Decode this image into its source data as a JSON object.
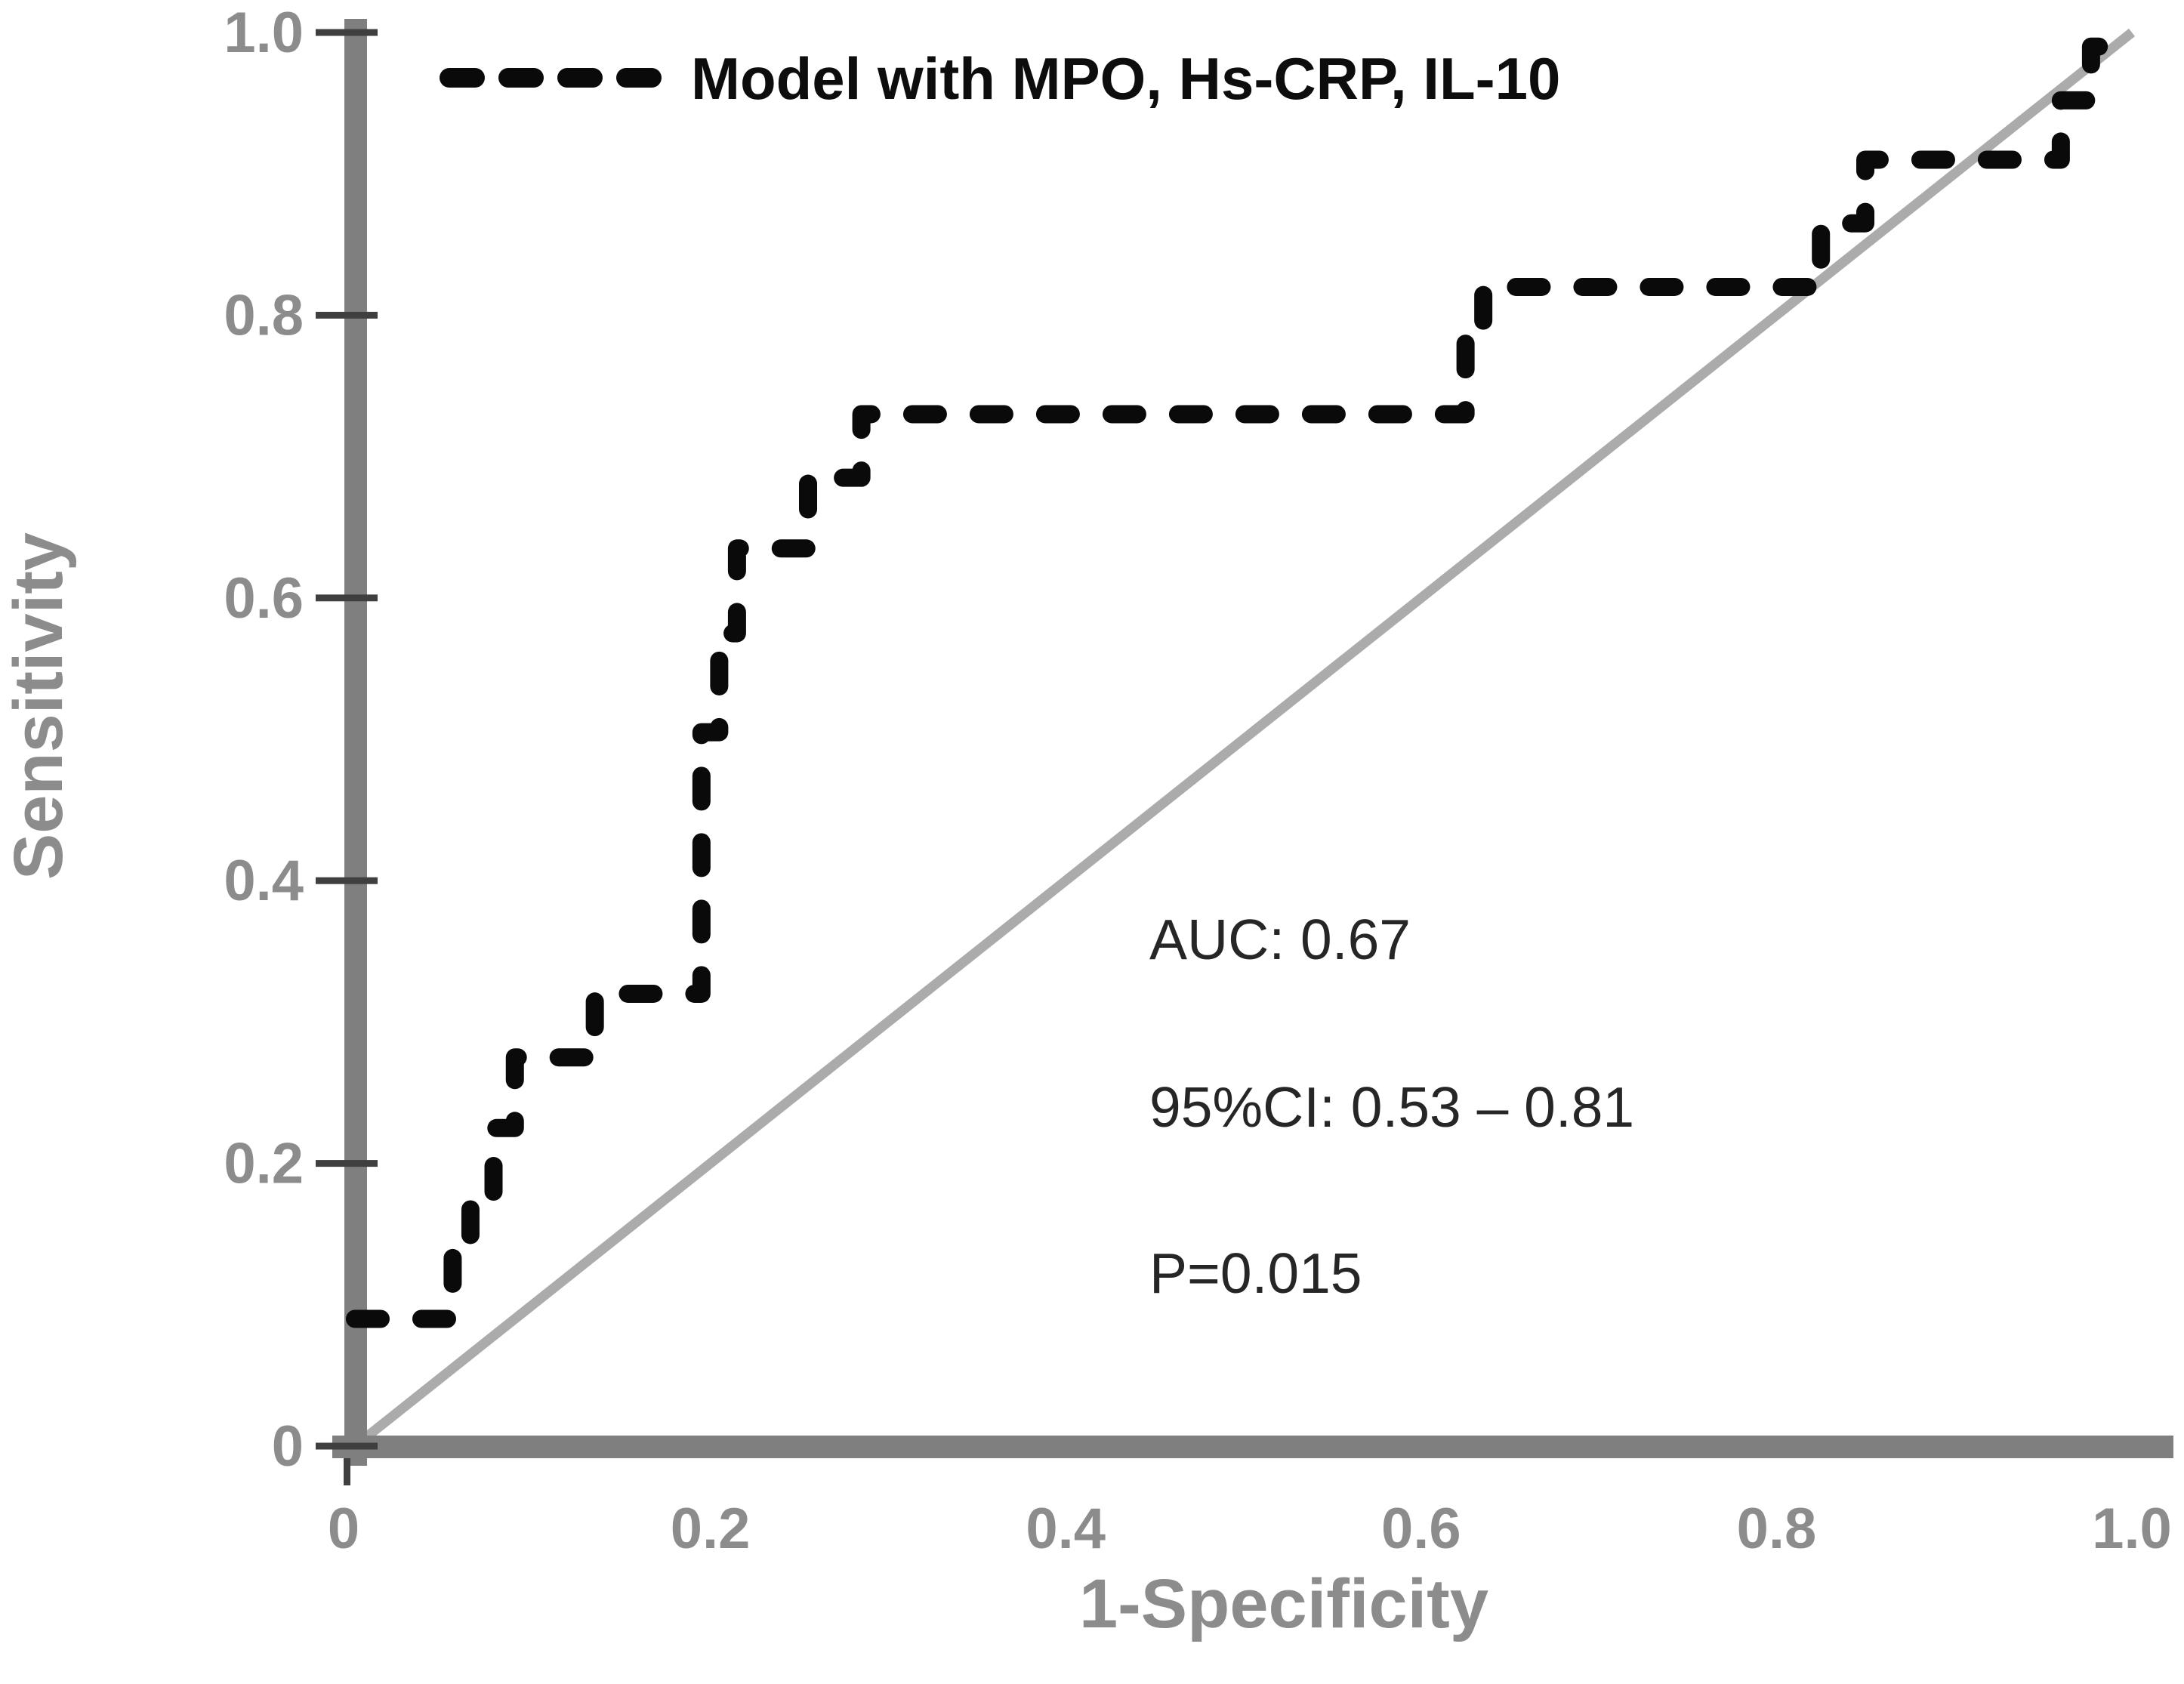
{
  "figure": {
    "legend": {
      "marker": "dashed-line-sample",
      "label": "Model with MPO, Hs-CRP, IL-10"
    },
    "annotations": {
      "auc": "AUC: 0.67",
      "ci": "95%CI: 0.53 – 0.81",
      "p": "P=0.015"
    },
    "colors": {
      "curve": "#0a0a0a",
      "reference_line": "#ababab",
      "axis": "#7f7f7f",
      "tick_mark": "#3f3f3f",
      "tick_label": "#8c8c8c",
      "axis_title": "#8c8c8c",
      "annotation_text": "#262626",
      "legend_text": "#0d0d0d"
    }
  },
  "chart_data": {
    "type": "line",
    "subtype": "roc-curve",
    "title": "",
    "xlabel": "1-Specificity",
    "ylabel": "Sensitivity",
    "xlim": [
      0,
      1
    ],
    "ylim": [
      0,
      1
    ],
    "grid": false,
    "legend_position": "top-left",
    "x_ticks": {
      "values": [
        0,
        0.2,
        0.4,
        0.6,
        0.8,
        1.0
      ],
      "labels": [
        "0",
        "0.2",
        "0.4",
        "0.6",
        "0.8",
        "1.0"
      ]
    },
    "y_ticks": {
      "values": [
        0,
        0.2,
        0.4,
        0.6,
        0.8,
        1.0
      ],
      "labels": [
        "0",
        "0.2",
        "0.4",
        "0.6",
        "0.8",
        "1.0"
      ]
    },
    "series": [
      {
        "name": "Model with MPO, Hs-CRP, IL-10",
        "type": "step",
        "line_style": "dashed",
        "color": "#0a0a0a",
        "points": [
          [
            0,
            0.09
          ],
          [
            0.055,
            0.09
          ],
          [
            0.055,
            0.14
          ],
          [
            0.065,
            0.14
          ],
          [
            0.065,
            0.18
          ],
          [
            0.078,
            0.18
          ],
          [
            0.078,
            0.225
          ],
          [
            0.09,
            0.225
          ],
          [
            0.09,
            0.275
          ],
          [
            0.135,
            0.275
          ],
          [
            0.135,
            0.32
          ],
          [
            0.195,
            0.32
          ],
          [
            0.195,
            0.505
          ],
          [
            0.205,
            0.505
          ],
          [
            0.205,
            0.575
          ],
          [
            0.215,
            0.575
          ],
          [
            0.215,
            0.635
          ],
          [
            0.255,
            0.635
          ],
          [
            0.255,
            0.685
          ],
          [
            0.285,
            0.685
          ],
          [
            0.285,
            0.73
          ],
          [
            0.625,
            0.73
          ],
          [
            0.625,
            0.78
          ],
          [
            0.635,
            0.78
          ],
          [
            0.635,
            0.82
          ],
          [
            0.825,
            0.82
          ],
          [
            0.825,
            0.865
          ],
          [
            0.85,
            0.865
          ],
          [
            0.85,
            0.91
          ],
          [
            0.96,
            0.91
          ],
          [
            0.96,
            0.952
          ],
          [
            0.977,
            0.952
          ],
          [
            0.977,
            0.99
          ],
          [
            1.0,
            0.99
          ]
        ]
      },
      {
        "name": "chance reference diagonal",
        "type": "straight",
        "line_style": "solid",
        "color": "#ababab",
        "points": [
          [
            0,
            0
          ],
          [
            1,
            1
          ]
        ]
      }
    ],
    "stats": {
      "AUC": 0.67,
      "CI95": [
        0.53,
        0.81
      ],
      "P": 0.015
    }
  }
}
